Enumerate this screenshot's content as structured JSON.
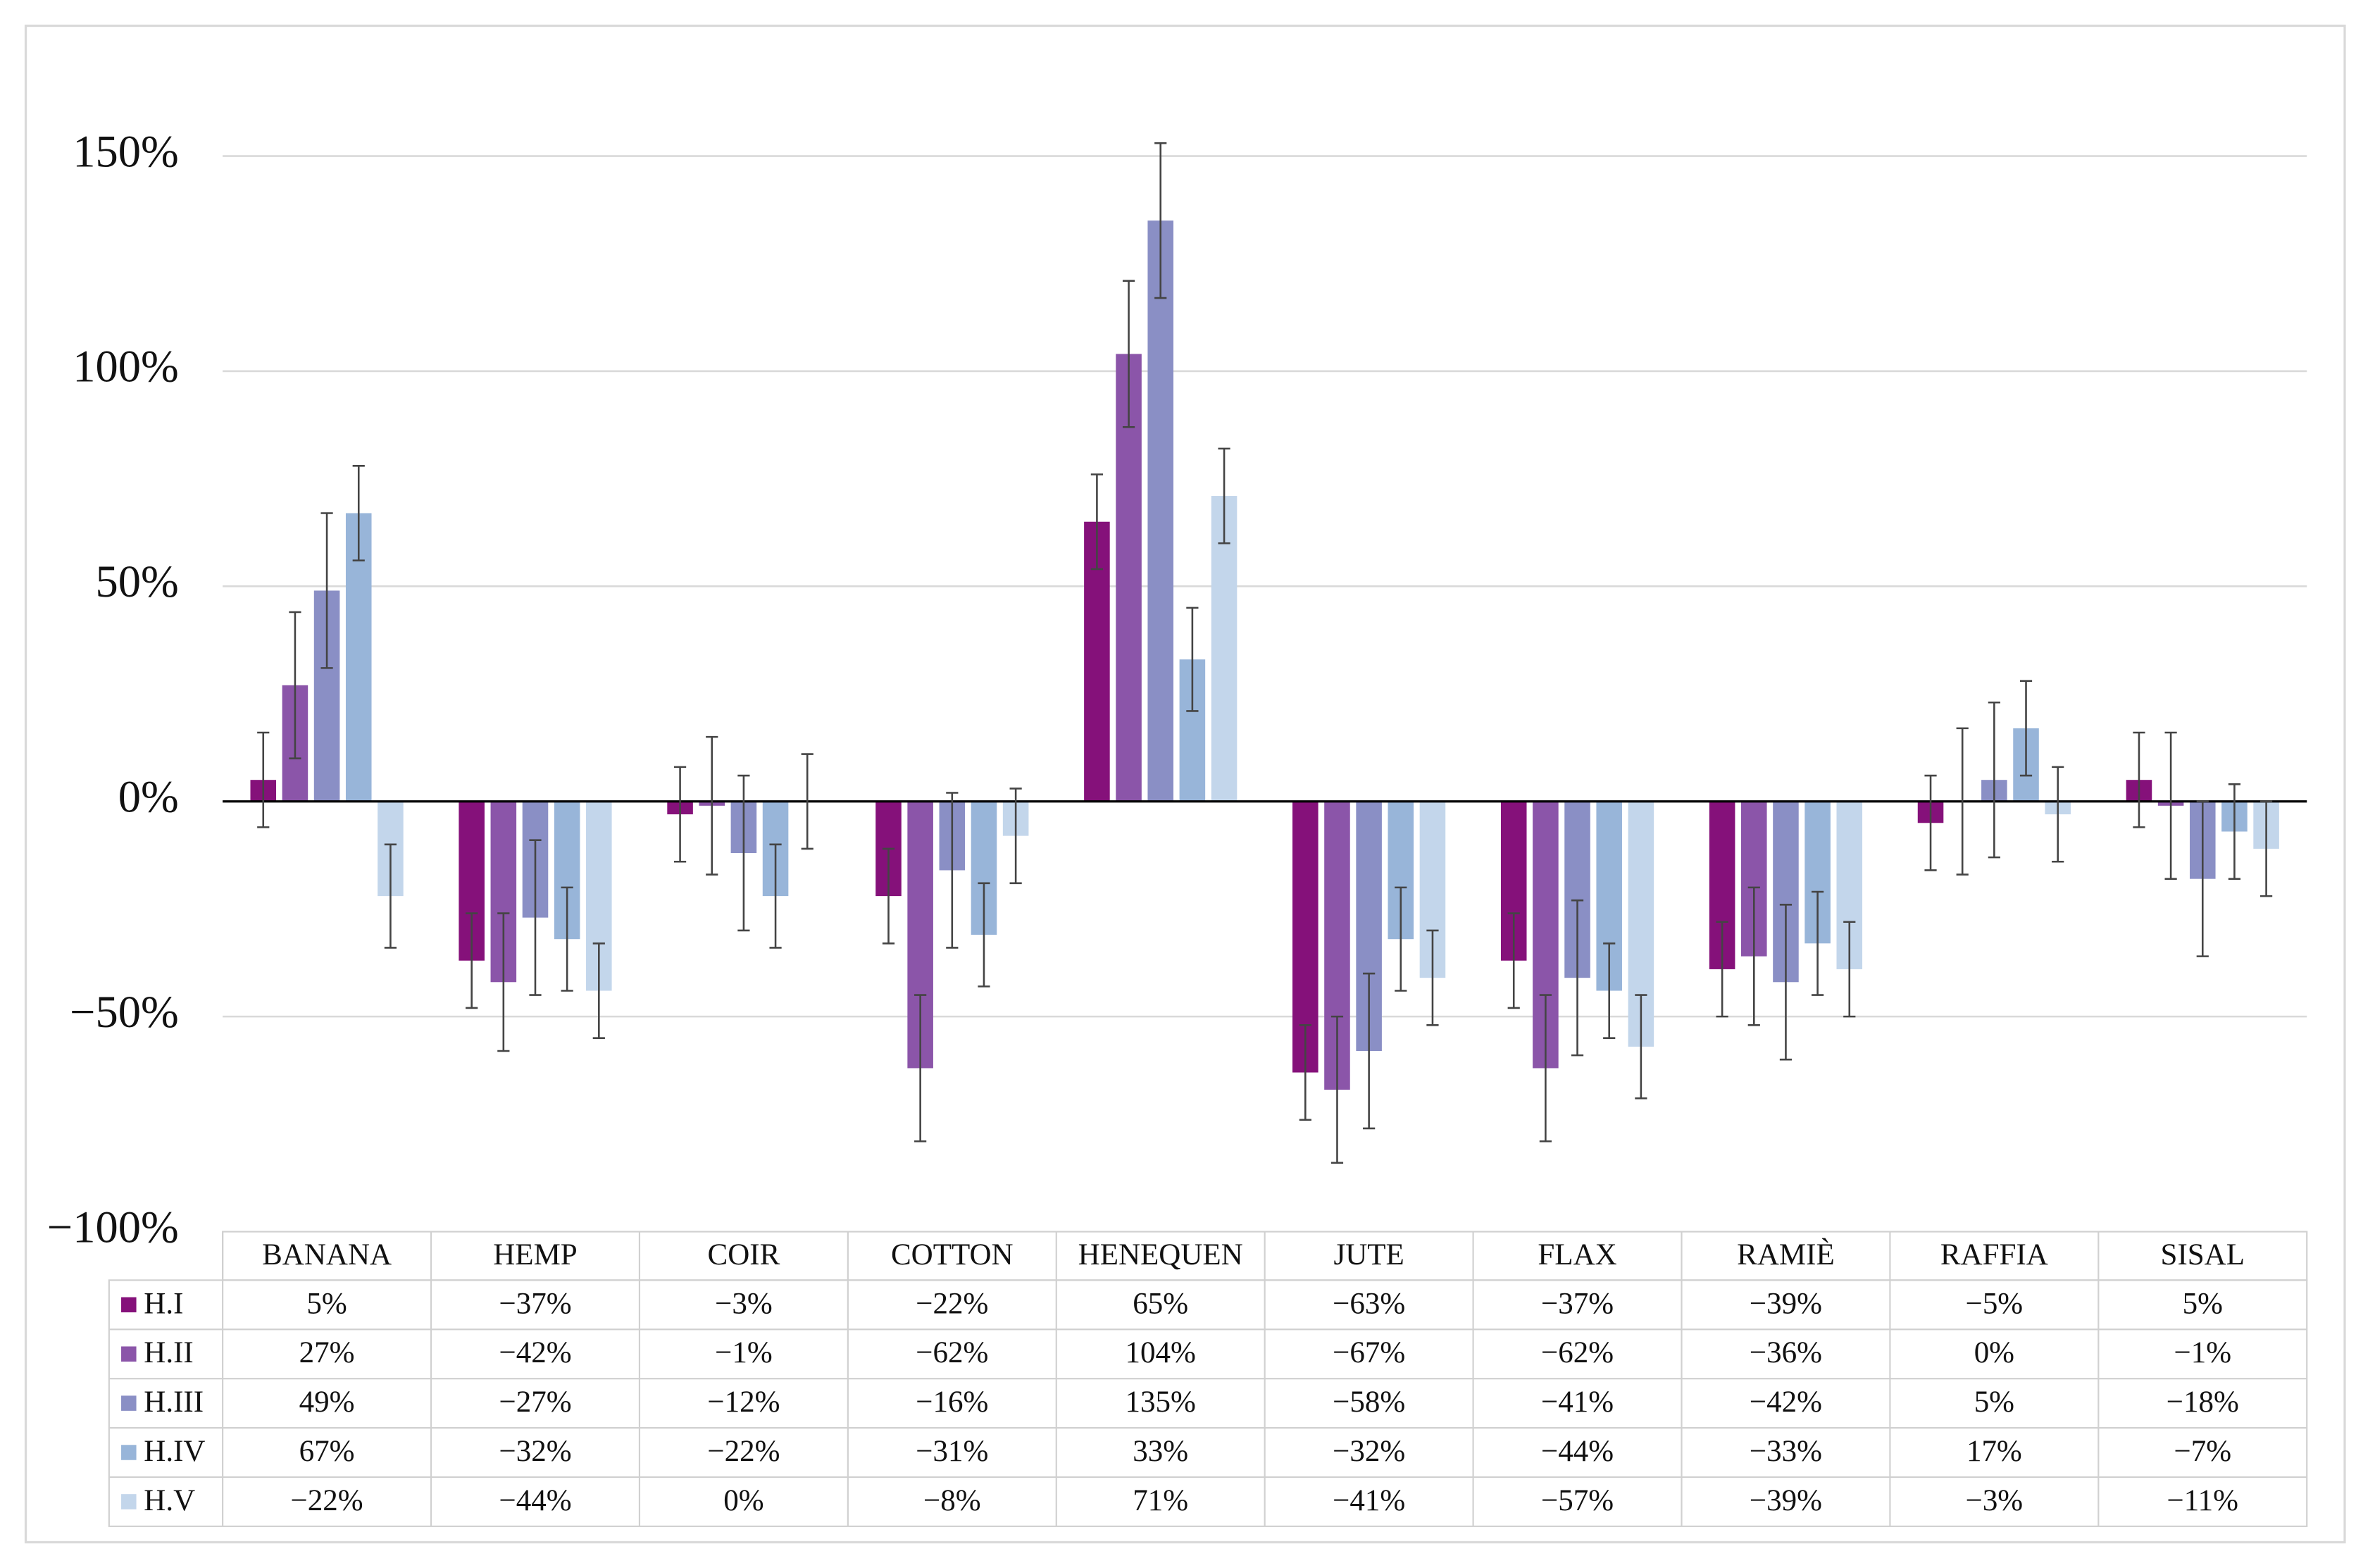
{
  "chart_data": {
    "type": "bar",
    "categories": [
      "BANANA",
      "HEMP",
      "COIR",
      "COTTON",
      "HENEQUEN",
      "JUTE",
      "FLAX",
      "RAMIÈ",
      "RAFFIA",
      "SISAL"
    ],
    "series": [
      {
        "name": "H.I",
        "color": "#85117a",
        "values": [
          5,
          -37,
          -3,
          -22,
          65,
          -63,
          -37,
          -39,
          -5,
          5
        ],
        "value_labels": [
          "5%",
          "−37%",
          "−3%",
          "−22%",
          "65%",
          "−63%",
          "−37%",
          "−39%",
          "−5%",
          "5%"
        ],
        "errors": [
          11,
          11,
          11,
          11,
          11,
          11,
          11,
          11,
          11,
          11
        ]
      },
      {
        "name": "H.II",
        "color": "#8b55a9",
        "values": [
          27,
          -42,
          -1,
          -62,
          104,
          -67,
          -62,
          -36,
          0,
          -1
        ],
        "value_labels": [
          "27%",
          "−42%",
          "−1%",
          "−62%",
          "104%",
          "−67%",
          "−62%",
          "−36%",
          "0%",
          "−1%"
        ],
        "errors": [
          17,
          16,
          16,
          17,
          17,
          17,
          17,
          16,
          17,
          17
        ]
      },
      {
        "name": "H.III",
        "color": "#8a8fc5",
        "values": [
          49,
          -27,
          -12,
          -16,
          135,
          -58,
          -41,
          -42,
          5,
          -18
        ],
        "value_labels": [
          "49%",
          "−27%",
          "−12%",
          "−16%",
          "135%",
          "−58%",
          "−41%",
          "−42%",
          "5%",
          "−18%"
        ],
        "errors": [
          18,
          18,
          18,
          18,
          18,
          18,
          18,
          18,
          18,
          18
        ]
      },
      {
        "name": "H.IV",
        "color": "#98b5d9",
        "values": [
          67,
          -32,
          -22,
          -31,
          33,
          -32,
          -44,
          -33,
          17,
          -7
        ],
        "value_labels": [
          "67%",
          "−32%",
          "−22%",
          "−31%",
          "33%",
          "−32%",
          "−44%",
          "−33%",
          "17%",
          "−7%"
        ],
        "errors": [
          11,
          12,
          12,
          12,
          12,
          12,
          11,
          12,
          11,
          11
        ]
      },
      {
        "name": "H.V",
        "color": "#c3d6eb",
        "values": [
          -22,
          -44,
          0,
          -8,
          71,
          -41,
          -57,
          -39,
          -3,
          -11
        ],
        "value_labels": [
          "−22%",
          "−44%",
          "0%",
          "−8%",
          "71%",
          "−41%",
          "−57%",
          "−39%",
          "−3%",
          "−11%"
        ],
        "errors": [
          12,
          11,
          11,
          11,
          11,
          11,
          12,
          11,
          11,
          11
        ]
      }
    ],
    "ylim": [
      -100,
      150
    ],
    "yticks": [
      {
        "value": -100,
        "label": "−100%"
      },
      {
        "value": -50,
        "label": "−50%"
      },
      {
        "value": 0,
        "label": "0%"
      },
      {
        "value": 50,
        "label": "50%"
      },
      {
        "value": 100,
        "label": "100%"
      },
      {
        "value": 150,
        "label": "150%"
      }
    ],
    "grid": true
  }
}
